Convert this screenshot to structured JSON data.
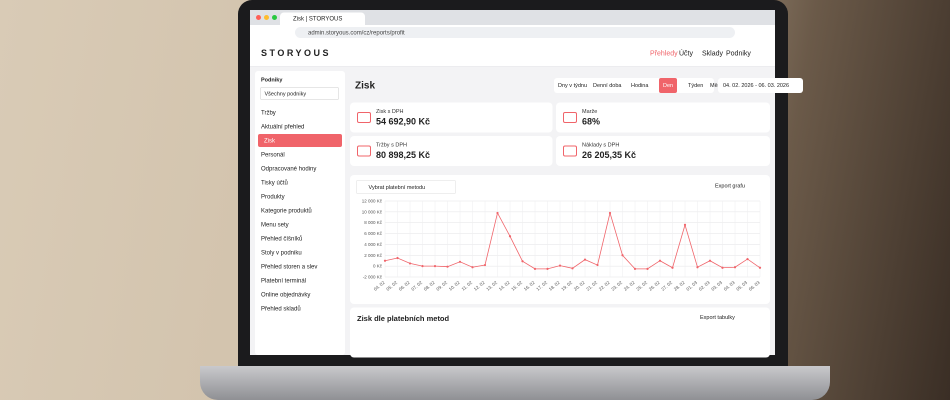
{
  "browser": {
    "tab_title": "Zisk | STORYOUS",
    "url": "admin.storyous.com/cz/reports/profit"
  },
  "header": {
    "logo": "STORYOUS",
    "nav": [
      "Přehledy",
      "Účty",
      "Sklady",
      "Podniky"
    ]
  },
  "sidebar": {
    "label": "Podniky",
    "select": "Všechny podniky",
    "items": [
      "Tržby",
      "Aktuální přehled",
      "Zisk",
      "Personál",
      "Odpracované hodiny",
      "Tisky účtů",
      "Produkty",
      "Kategorie produktů",
      "Menu sety",
      "Přehled číšníků",
      "Stoly v podniku",
      "Přehled storen a slev",
      "Platební terminál",
      "Online objednávky",
      "Přehled skladů"
    ]
  },
  "page": {
    "title": "Zisk",
    "range_buttons": [
      "Dny v týdnu",
      "Denní doba",
      "Hodina",
      "Den",
      "Týden",
      "Měsíc"
    ],
    "date_range": "04. 02. 2026 - 06. 03. 2026",
    "cards": [
      {
        "label": "Zisk s DPH",
        "value": "54 692,90 Kč"
      },
      {
        "label": "Marže",
        "value": "68%"
      },
      {
        "label": "Tržby s DPH",
        "value": "80 898,25 Kč"
      },
      {
        "label": "Náklady s DPH",
        "value": "26 205,35 Kč"
      }
    ],
    "filter": "Vybrat platební metodu",
    "export_chart": "Export grafu",
    "section_title": "Zisk dle platebních metod",
    "export_table": "Export tabulky"
  },
  "chart_data": {
    "type": "line",
    "color": "#f0646a",
    "grid": true,
    "x": [
      "04. 02",
      "05. 02",
      "06. 02",
      "07. 02",
      "08. 02",
      "09. 02",
      "10. 02",
      "11. 02",
      "12. 02",
      "13. 02",
      "14. 02",
      "15. 02",
      "16. 02",
      "17. 02",
      "18. 02",
      "19. 02",
      "20. 02",
      "21. 02",
      "22. 02",
      "23. 02",
      "24. 02",
      "25. 02",
      "26. 02",
      "27. 02",
      "28. 02",
      "01. 03",
      "02. 03",
      "03. 03",
      "04. 03",
      "05. 03",
      "06. 03"
    ],
    "values": [
      1000,
      1500,
      500,
      0,
      0,
      -100,
      800,
      -200,
      200,
      9800,
      5500,
      900,
      -500,
      -500,
      100,
      -400,
      1200,
      200,
      9800,
      2000,
      -500,
      -500,
      1000,
      -300,
      7600,
      -200,
      1000,
      -300,
      -200,
      1300,
      -300
    ],
    "ylim": [
      -2000,
      12000
    ],
    "yticks": [
      {
        "value": 12000,
        "label": "12 000 Kč"
      },
      {
        "value": 10000,
        "label": "10 000 Kč"
      },
      {
        "value": 8000,
        "label": "8 000 Kč"
      },
      {
        "value": 6000,
        "label": "6 000 Kč"
      },
      {
        "value": 4000,
        "label": "4 000 Kč"
      },
      {
        "value": 2000,
        "label": "2 000 Kč"
      },
      {
        "value": 0,
        "label": "0 Kč"
      },
      {
        "value": -2000,
        "label": "-2 000 Kč"
      }
    ]
  }
}
